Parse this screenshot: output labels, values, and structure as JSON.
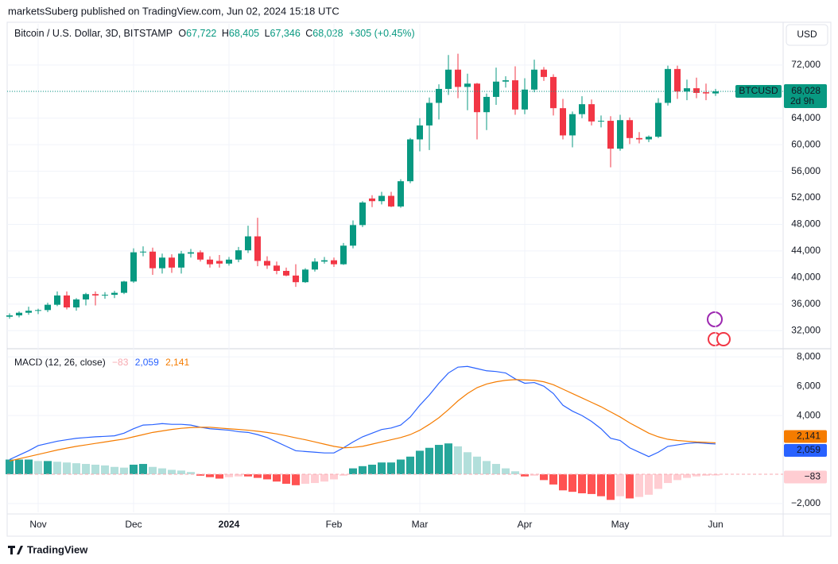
{
  "header": {
    "publisher": "marketsSuberg published on TradingView.com, Jun 02, 2024 15:18 UTC",
    "symbol": "Bitcoin / U.S. Dollar, 3D, BITSTAMP",
    "ohlc": [
      {
        "key": "O",
        "text": "67,722"
      },
      {
        "key": "H",
        "text": "68,405"
      },
      {
        "key": "L",
        "text": "67,346"
      },
      {
        "key": "C",
        "text": "68,028"
      }
    ],
    "change": "+305 (+0.45%)",
    "currency": "USD"
  },
  "chart_data": [
    {
      "type": "candlestick",
      "up_color": "#089981",
      "down_color": "#f23645",
      "grid": true,
      "ylim": [
        29400,
        78200
      ],
      "yticks": [
        {
          "value": 32000,
          "label": "32,000"
        },
        {
          "value": 36000,
          "label": "36,000"
        },
        {
          "value": 40000,
          "label": "40,000"
        },
        {
          "value": 44000,
          "label": "44,000"
        },
        {
          "value": 48000,
          "label": "48,000"
        },
        {
          "value": 52000,
          "label": "52,000"
        },
        {
          "value": 56000,
          "label": "56,000"
        },
        {
          "value": 60000,
          "label": "60,000"
        },
        {
          "value": 64000,
          "label": "64,000"
        },
        {
          "value": 68000,
          "label": "68,000"
        },
        {
          "value": 72000,
          "label": "72,000"
        }
      ],
      "xticks": [
        {
          "value": 3,
          "label": "Nov"
        },
        {
          "value": 13,
          "label": "Dec"
        },
        {
          "value": 23,
          "label": "2024"
        },
        {
          "value": 34,
          "label": "Feb"
        },
        {
          "value": 43,
          "label": "Mar"
        },
        {
          "value": 54,
          "label": "Apr"
        },
        {
          "value": 64,
          "label": "May"
        },
        {
          "value": 74,
          "label": "Jun"
        }
      ],
      "open": [
        34100,
        34300,
        34700,
        35000,
        35100,
        35900,
        37300,
        35500,
        36700,
        37500,
        37300,
        37400,
        37700,
        39400,
        43800,
        43900,
        41400,
        43000,
        41500,
        43600,
        43800,
        42700,
        42500,
        42100,
        42700,
        44100,
        46200,
        42500,
        41800,
        41000,
        40300,
        39300,
        41200,
        42400,
        42600,
        42000,
        44800,
        47900,
        51900,
        51500,
        52300,
        50700,
        54500,
        60800,
        62900,
        66300,
        68400,
        71300,
        68700,
        69200,
        64900,
        67200,
        69500,
        69700,
        65300,
        68300,
        71300,
        70200,
        65500,
        61400,
        64600,
        66100,
        63500,
        63600,
        59400,
        63700,
        61000,
        60800,
        61200,
        66300,
        71400,
        68000,
        68500,
        67900,
        67722
      ],
      "high": [
        34600,
        34900,
        35600,
        35300,
        36200,
        37900,
        37900,
        36900,
        37700,
        37900,
        37800,
        38000,
        39500,
        44400,
        44700,
        44500,
        43600,
        43500,
        44000,
        44300,
        44100,
        43200,
        43400,
        43100,
        44600,
        47800,
        49000,
        43200,
        42400,
        41500,
        42000,
        41400,
        42900,
        43100,
        43000,
        45200,
        48600,
        51500,
        52400,
        52900,
        52900,
        54800,
        61000,
        64000,
        67100,
        69100,
        73500,
        73700,
        70700,
        69300,
        67700,
        71600,
        70300,
        71800,
        70000,
        72800,
        71700,
        70600,
        66900,
        65000,
        67300,
        66800,
        64400,
        64300,
        64500,
        64100,
        61900,
        61400,
        67000,
        71900,
        71900,
        69800,
        70100,
        69200,
        68405
      ],
      "low": [
        33800,
        34000,
        34400,
        34500,
        34800,
        35700,
        35200,
        35000,
        35800,
        35800,
        36800,
        36900,
        37500,
        39200,
        43200,
        40400,
        40600,
        40700,
        40600,
        43000,
        42400,
        41500,
        41500,
        41800,
        42300,
        43700,
        41700,
        41300,
        40500,
        40200,
        38600,
        39200,
        40900,
        42100,
        41600,
        41900,
        44400,
        47600,
        50600,
        51000,
        50600,
        50500,
        54200,
        59000,
        59200,
        63800,
        67500,
        67000,
        65200,
        60800,
        62200,
        66000,
        68600,
        64500,
        64600,
        67900,
        69600,
        64400,
        60800,
        59600,
        64000,
        62900,
        62600,
        56600,
        59100,
        60100,
        60200,
        60400,
        61000,
        65900,
        66900,
        66700,
        67000,
        66700,
        67346
      ],
      "close": [
        34300,
        34700,
        35000,
        35100,
        35900,
        37300,
        35500,
        36700,
        37500,
        37300,
        37400,
        37700,
        39400,
        43800,
        43900,
        41400,
        43000,
        41500,
        43600,
        43800,
        42700,
        42000,
        42100,
        42700,
        44100,
        46200,
        42500,
        41800,
        41000,
        40300,
        39300,
        41200,
        42400,
        42600,
        42000,
        44800,
        47900,
        51300,
        51500,
        52300,
        50700,
        54500,
        60800,
        62900,
        66300,
        68400,
        71300,
        68700,
        69200,
        64900,
        67200,
        69500,
        69700,
        65300,
        68300,
        71300,
        70200,
        65500,
        61400,
        64600,
        66100,
        63500,
        63600,
        59400,
        63700,
        61000,
        60800,
        61200,
        66300,
        71400,
        68000,
        68500,
        67800,
        67722,
        68028
      ],
      "last_label": {
        "symbol": "BTCUSD",
        "price": "68,028",
        "countdown": "2d 9h"
      }
    },
    {
      "type": "macd",
      "title": "MACD (12, 26, close)",
      "grid": true,
      "ylim": [
        -2600,
        8500
      ],
      "yticks": [
        {
          "value": -2000,
          "label": "−2,000"
        },
        {
          "value": 4000,
          "label": "4,000"
        },
        {
          "value": 6000,
          "label": "6,000"
        },
        {
          "value": 8000,
          "label": "8,000"
        }
      ],
      "histogram": {
        "colors": {
          "up_strong": "#26a69a",
          "up_weak": "#b2dfdb",
          "down_strong": "#ff5252",
          "down_weak": "#ffcdd2"
        },
        "last_label": "−83",
        "values": [
          1000,
          1000,
          1000,
          900,
          900,
          850,
          800,
          750,
          700,
          650,
          600,
          500,
          450,
          650,
          700,
          500,
          400,
          300,
          250,
          150,
          -100,
          -200,
          -300,
          -200,
          -150,
          -150,
          -250,
          -350,
          -500,
          -650,
          -750,
          -650,
          -600,
          -500,
          -350,
          -100,
          400,
          550,
          650,
          800,
          800,
          1000,
          1200,
          1600,
          1800,
          2000,
          2100,
          1900,
          1500,
          1200,
          900,
          700,
          400,
          200,
          -150,
          -100,
          -400,
          -700,
          -1100,
          -1200,
          -1300,
          -1350,
          -1500,
          -1750,
          -1500,
          -1650,
          -1550,
          -1400,
          -1000,
          -600,
          -400,
          -250,
          -150,
          -100,
          -83
        ]
      },
      "series": [
        {
          "color": "#2962ff",
          "last_label": "2,059",
          "values": [
            1000,
            1300,
            1600,
            1950,
            2100,
            2250,
            2350,
            2450,
            2500,
            2550,
            2580,
            2620,
            2800,
            3100,
            3350,
            3380,
            3450,
            3400,
            3400,
            3350,
            3200,
            3100,
            3050,
            3000,
            2900,
            2850,
            2700,
            2500,
            2200,
            1900,
            1600,
            1550,
            1500,
            1450,
            1450,
            1800,
            2200,
            2550,
            2800,
            3050,
            3150,
            3350,
            3900,
            4700,
            5400,
            6200,
            6900,
            7300,
            7350,
            7200,
            7050,
            7000,
            6900,
            6500,
            6200,
            6250,
            6000,
            5500,
            4700,
            4300,
            4000,
            3600,
            3100,
            2450,
            2300,
            1800,
            1500,
            1200,
            1500,
            1900,
            2000,
            2100,
            2150,
            2100,
            2059
          ]
        },
        {
          "color": "#f57c00",
          "last_label": "2,141",
          "values": [
            900,
            1050,
            1200,
            1350,
            1500,
            1650,
            1780,
            1900,
            2000,
            2100,
            2200,
            2300,
            2400,
            2550,
            2700,
            2850,
            2950,
            3050,
            3130,
            3180,
            3200,
            3200,
            3150,
            3100,
            3050,
            3000,
            2930,
            2850,
            2750,
            2620,
            2480,
            2350,
            2200,
            2050,
            1900,
            1800,
            1830,
            1900,
            2050,
            2200,
            2350,
            2500,
            2700,
            3000,
            3400,
            3850,
            4400,
            5000,
            5500,
            5900,
            6150,
            6300,
            6400,
            6450,
            6430,
            6400,
            6300,
            6100,
            5800,
            5500,
            5200,
            4900,
            4600,
            4250,
            3900,
            3500,
            3150,
            2800,
            2550,
            2380,
            2300,
            2250,
            2200,
            2170,
            2141
          ]
        }
      ]
    }
  ],
  "footer": {
    "brand": "TradingView"
  }
}
